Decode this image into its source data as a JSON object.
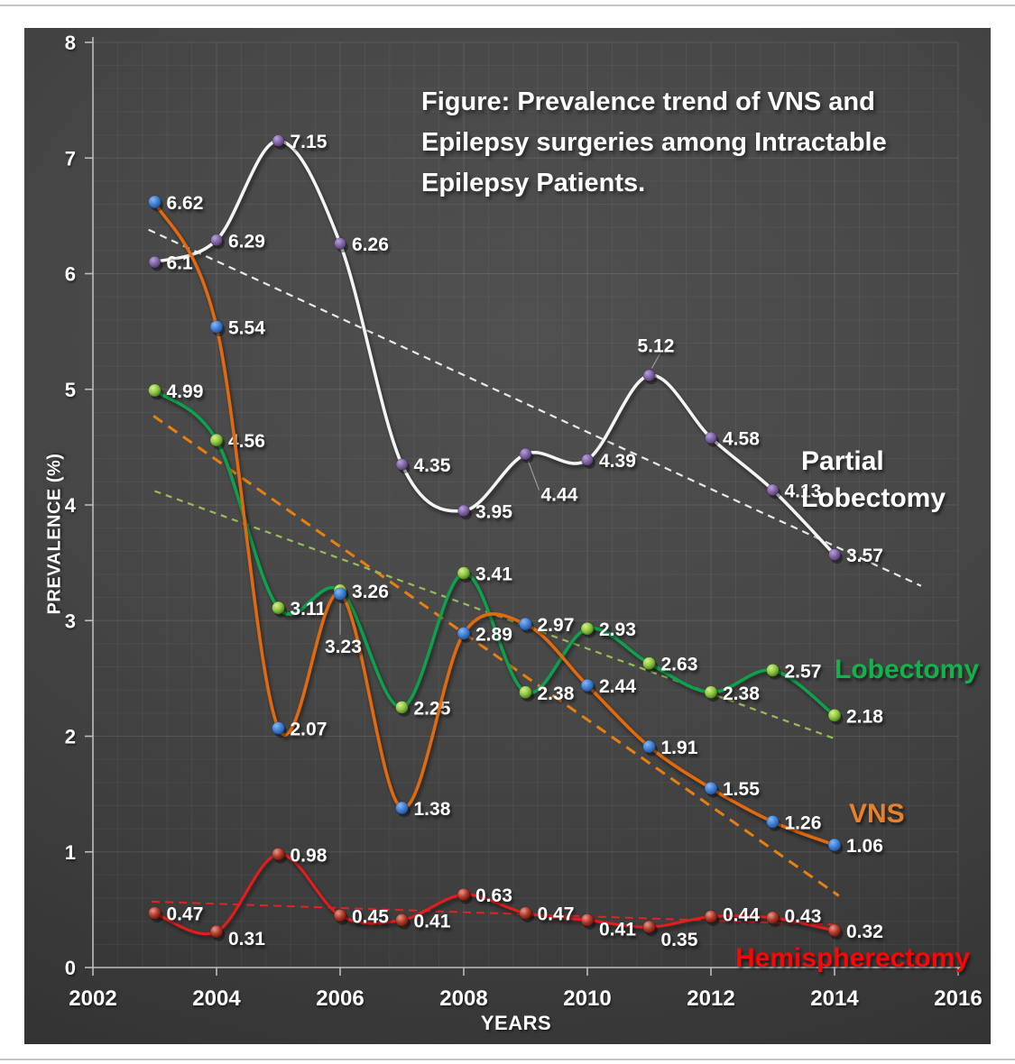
{
  "title": {
    "line1": "Figure: Prevalence trend of VNS and",
    "line2": "Epilepsy surgeries among Intractable",
    "line3": "Epilepsy Patients."
  },
  "axes": {
    "x": {
      "label": "YEARS",
      "min": 2002,
      "max": 2016,
      "ticks": [
        2002,
        2004,
        2006,
        2008,
        2010,
        2012,
        2014,
        2016
      ]
    },
    "y": {
      "label": "PREVALENCE (%)",
      "min": 0,
      "max": 8,
      "ticks": [
        0,
        1,
        2,
        3,
        4,
        5,
        6,
        7,
        8
      ]
    }
  },
  "legends": {
    "partial": {
      "line1": "Partial",
      "line2": "Lobectomy",
      "color": "#ffffff"
    },
    "lobectomy": {
      "text": "Lobectomy",
      "color": "#14b14c"
    },
    "vns": {
      "text": "VNS",
      "color": "#e8812b"
    },
    "hemispherectomy": {
      "text": "Hemispherectomy",
      "color": "#fb0606"
    }
  },
  "chart_data": {
    "type": "line",
    "x": [
      2003,
      2004,
      2005,
      2006,
      2007,
      2008,
      2009,
      2010,
      2011,
      2012,
      2013,
      2014
    ],
    "grid": "on",
    "series": [
      {
        "name": "Partial Lobectomy",
        "line_color": "#f5f5f5",
        "marker_color": "#8064a2",
        "marker_light": "#b9a1e2",
        "marker_dark": "#4d3a6e",
        "values": [
          6.1,
          6.29,
          7.15,
          6.26,
          4.35,
          3.95,
          4.44,
          4.39,
          5.12,
          4.58,
          4.13,
          3.57
        ],
        "label_overrides": {
          "2009": {
            "dx": 17,
            "dy": 44,
            "leader": [
              3,
              8,
              15,
              40
            ]
          },
          "2011": {
            "dx": -13,
            "dy": -34,
            "leader": [
              3,
              -8,
              13,
              -26
            ]
          }
        }
      },
      {
        "name": "Lobectomy",
        "line_color": "#0fa04e",
        "marker_color": "#8cc63f",
        "marker_light": "#d9ef90",
        "marker_dark": "#44731c",
        "values": [
          4.99,
          4.56,
          3.11,
          3.26,
          2.25,
          3.41,
          2.38,
          2.93,
          2.63,
          2.38,
          2.57,
          2.18
        ],
        "label_overrides": {}
      },
      {
        "name": "VNS",
        "line_color": "#e2690b",
        "marker_color": "#3f7fd4",
        "marker_light": "#8ab8f2",
        "marker_dark": "#1d4e96",
        "values": [
          6.62,
          5.54,
          2.07,
          3.23,
          1.38,
          2.89,
          2.97,
          2.44,
          1.91,
          1.55,
          1.26,
          1.06
        ],
        "label_overrides": {
          "2006": {
            "dx": -17,
            "dy": 57,
            "leader": [
              0,
              10,
              0,
              45
            ]
          }
        }
      },
      {
        "name": "Hemispherectomy",
        "line_color": "#e61e1e",
        "marker_color": "#b03728",
        "marker_light": "#e69c8d",
        "marker_dark": "#5e170e",
        "values": [
          0.47,
          0.31,
          0.98,
          0.45,
          0.41,
          0.63,
          0.47,
          0.41,
          0.35,
          0.44,
          0.43,
          0.32
        ],
        "label_overrides": {
          "2004": {
            "dy": 7
          },
          "2010": {
            "dy": 9
          },
          "2011": {
            "dy": 13
          },
          "2012": {
            "dy": -3
          },
          "2013": {
            "dy": -3
          }
        }
      }
    ],
    "trendlines": [
      {
        "series": "Partial Lobectomy",
        "color": "#e9e9e9",
        "width": 2.2,
        "dash": "8 6",
        "x1": 2002.9,
        "v1": 6.38,
        "x2": 2015.4,
        "v2": 3.3
      },
      {
        "series": "VNS",
        "color": "#e8800f",
        "width": 3,
        "dash": "12 8",
        "x1": 2002.98,
        "v1": 4.77,
        "x2": 2014.07,
        "v2": 0.62
      },
      {
        "series": "Lobectomy",
        "color": "#9bbb59",
        "width": 2.2,
        "dash": "7 6",
        "x1": 2003.0,
        "v1": 4.12,
        "x2": 2014.05,
        "v2": 1.97
      },
      {
        "series": "Hemispherectomy",
        "color": "#e02424",
        "width": 2,
        "dash": "9 6",
        "x1": 2002.95,
        "v1": 0.57,
        "x2": 2014.0,
        "v2": 0.37
      }
    ]
  }
}
